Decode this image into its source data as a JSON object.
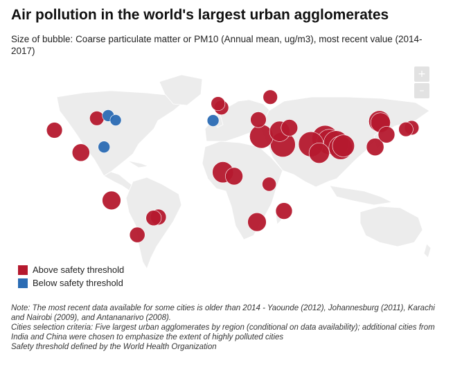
{
  "title": "Air pollution in the world's largest urban agglomerates",
  "subtitle": "Size of bubble: Coarse particulate matter or PM10 (Annual mean, ug/m3), most recent value (2014-2017)",
  "zoom": {
    "in_label": "+",
    "out_label": "–"
  },
  "legend": {
    "above": {
      "label": "Above safety threshold",
      "color": "#b5192e"
    },
    "below": {
      "label": "Below safety threshold",
      "color": "#2b6cb4"
    }
  },
  "colors": {
    "land": "#ececec",
    "borders": "#ffffff"
  },
  "notes": {
    "note": "Note: The most recent data available for some cities is older than 2014 - Yaounde (2012), Johannesburg (2011), Karachi and Nairobi (2009), and Antananarivo (2008).",
    "criteria": "Cities selection criteria: Five largest urban agglomerates by region (conditional on data availability); additional cities from India and China were chosen to emphasize the extent of highly polluted cities",
    "threshold": "Safety threshold defined by the World Health Organization"
  },
  "map_data": {
    "bubbles": [
      {
        "lon": -118.2,
        "lat": 34.1,
        "status": "above",
        "size": 36
      },
      {
        "lon": -99.1,
        "lat": 19.4,
        "status": "above",
        "size": 44
      },
      {
        "lon": -87.6,
        "lat": 41.9,
        "status": "above",
        "size": 30
      },
      {
        "lon": -79.4,
        "lat": 43.7,
        "status": "below",
        "size": 20
      },
      {
        "lon": -74.0,
        "lat": 40.7,
        "status": "below",
        "size": 18
      },
      {
        "lon": -82.4,
        "lat": 23.1,
        "status": "below",
        "size": 20
      },
      {
        "lon": -77.0,
        "lat": -12.0,
        "status": "above",
        "size": 50
      },
      {
        "lon": -46.6,
        "lat": -23.5,
        "status": "above",
        "size": 34
      },
      {
        "lon": -43.2,
        "lat": -22.9,
        "status": "above",
        "size": 36
      },
      {
        "lon": -58.4,
        "lat": -34.6,
        "status": "above",
        "size": 34
      },
      {
        "lon": -3.7,
        "lat": 40.4,
        "status": "below",
        "size": 20
      },
      {
        "lon": -0.1,
        "lat": 51.5,
        "status": "above",
        "size": 28
      },
      {
        "lon": 2.35,
        "lat": 48.9,
        "status": "above",
        "size": 30
      },
      {
        "lon": 37.6,
        "lat": 55.8,
        "status": "above",
        "size": 30
      },
      {
        "lon": 29.0,
        "lat": 41.0,
        "status": "above",
        "size": 36
      },
      {
        "lon": 31.2,
        "lat": 30.0,
        "status": "above",
        "size": 80
      },
      {
        "lon": 46.7,
        "lat": 24.7,
        "status": "above",
        "size": 90
      },
      {
        "lon": 44.4,
        "lat": 33.3,
        "status": "above",
        "size": 60
      },
      {
        "lon": 51.4,
        "lat": 35.7,
        "status": "above",
        "size": 40
      },
      {
        "lon": 3.4,
        "lat": 6.5,
        "status": "above",
        "size": 64
      },
      {
        "lon": 11.5,
        "lat": 3.9,
        "status": "above",
        "size": 44
      },
      {
        "lon": 36.8,
        "lat": -1.3,
        "status": "above",
        "size": 28
      },
      {
        "lon": 28.0,
        "lat": -26.2,
        "status": "above",
        "size": 50
      },
      {
        "lon": 47.5,
        "lat": -18.9,
        "status": "above",
        "size": 40
      },
      {
        "lon": 67.0,
        "lat": 24.9,
        "status": "above",
        "size": 90
      },
      {
        "lon": 77.2,
        "lat": 28.6,
        "status": "above",
        "size": 100
      },
      {
        "lon": 72.9,
        "lat": 19.1,
        "status": "above",
        "size": 60
      },
      {
        "lon": 80.3,
        "lat": 26.4,
        "status": "above",
        "size": 92
      },
      {
        "lon": 88.4,
        "lat": 22.6,
        "status": "above",
        "size": 80
      },
      {
        "lon": 85.1,
        "lat": 25.6,
        "status": "above",
        "size": 90
      },
      {
        "lon": 90.4,
        "lat": 23.8,
        "status": "above",
        "size": 70
      },
      {
        "lon": 116.4,
        "lat": 39.9,
        "status": "above",
        "size": 66
      },
      {
        "lon": 117.2,
        "lat": 39.1,
        "status": "above",
        "size": 56
      },
      {
        "lon": 121.5,
        "lat": 31.2,
        "status": "above",
        "size": 40
      },
      {
        "lon": 113.3,
        "lat": 23.1,
        "status": "above",
        "size": 44
      },
      {
        "lon": 139.7,
        "lat": 35.7,
        "status": "above",
        "size": 30
      },
      {
        "lon": 135.5,
        "lat": 34.7,
        "status": "above",
        "size": 30
      }
    ]
  }
}
